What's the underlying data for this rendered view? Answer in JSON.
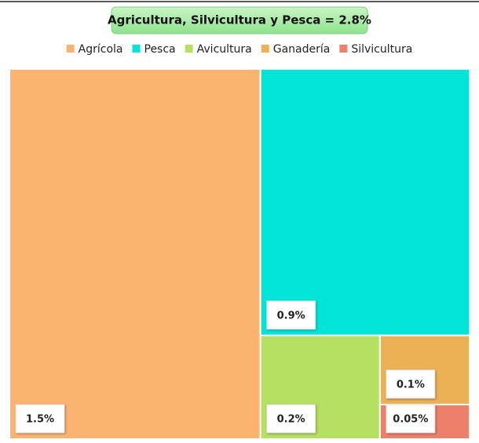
{
  "chart_data": {
    "type": "treemap",
    "title": "Agricultura, Silvicultura y Pesca = 2.8%",
    "categories": [
      "Agrícola",
      "Pesca",
      "Avicultura",
      "Ganadería",
      "Silvicultura"
    ],
    "values": [
      1.5,
      0.9,
      0.2,
      0.1,
      0.05
    ],
    "value_labels": [
      "1.5%",
      "0.9%",
      "0.2%",
      "0.1%",
      "0.05%"
    ],
    "colors": [
      "#fbb370",
      "#00e5d8",
      "#b5e061",
      "#ecb155",
      "#ee7f6b"
    ]
  }
}
